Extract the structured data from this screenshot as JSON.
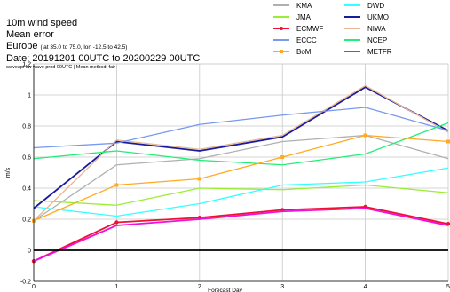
{
  "header": {
    "line1": "10m wind speed",
    "line2": "Mean error",
    "region": "Europe",
    "region_coords": "(lat 35.0 to 75.0, lon -12.5 to 42.5)",
    "dates": "Date: 20191201 00UTC to 20200229 00UTC",
    "source": "waveapi kw wave prod 00UTC | Mean method: fair"
  },
  "chart_data": {
    "type": "line",
    "xlabel": "Forecast Day",
    "ylabel": "m/s",
    "xlim": [
      0,
      5
    ],
    "ylim": [
      -0.2,
      1.2
    ],
    "x_ticks": [
      "0",
      "1",
      "2",
      "3",
      "4",
      "5"
    ],
    "y_ticks": [
      "-0.2",
      "0",
      "0.2",
      "0.4",
      "0.6",
      "0.8",
      "1",
      "1.2"
    ],
    "x": [
      0,
      1,
      2,
      3,
      4,
      5
    ],
    "grid": true,
    "legend_position": "top-right",
    "series": [
      {
        "name": "KMA",
        "color": "#b0b0b0",
        "marker": "none",
        "values": [
          0.19,
          0.55,
          0.59,
          0.7,
          0.74,
          0.59
        ]
      },
      {
        "name": "DWD",
        "color": "#33ffff",
        "marker": "none",
        "values": [
          0.28,
          0.22,
          0.3,
          0.42,
          0.44,
          0.53
        ]
      },
      {
        "name": "JMA",
        "color": "#99ee33",
        "marker": "none",
        "values": [
          0.32,
          0.29,
          0.4,
          0.39,
          0.42,
          0.37
        ]
      },
      {
        "name": "UKMO",
        "color": "#1a1aa0",
        "marker": "none",
        "values": [
          0.27,
          0.7,
          0.64,
          0.73,
          1.05,
          0.77
        ]
      },
      {
        "name": "ECMWF",
        "color": "#ee1133",
        "marker": "circle",
        "values": [
          -0.07,
          0.18,
          0.21,
          0.26,
          0.28,
          0.17
        ]
      },
      {
        "name": "NIWA",
        "color": "#e8b890",
        "marker": "none",
        "values": [
          0.19,
          0.71,
          0.65,
          0.74,
          1.06,
          0.76
        ]
      },
      {
        "name": "ECCC",
        "color": "#7799ee",
        "marker": "none",
        "values": [
          0.66,
          0.69,
          0.81,
          0.87,
          0.92,
          0.77
        ]
      },
      {
        "name": "NCEP",
        "color": "#22ee77",
        "marker": "none",
        "values": [
          0.59,
          0.64,
          0.58,
          0.55,
          0.62,
          0.82
        ]
      },
      {
        "name": "BoM",
        "color": "#ffaa22",
        "marker": "square",
        "values": [
          0.19,
          0.42,
          0.46,
          0.6,
          0.74,
          0.7
        ]
      },
      {
        "name": "METFR",
        "color": "#ee11dd",
        "marker": "none",
        "values": [
          -0.07,
          0.16,
          0.2,
          0.25,
          0.27,
          0.16
        ]
      }
    ]
  },
  "colors": {
    "grid": "#c8c8c8",
    "zero_line": "#000000",
    "axis": "#000000"
  }
}
